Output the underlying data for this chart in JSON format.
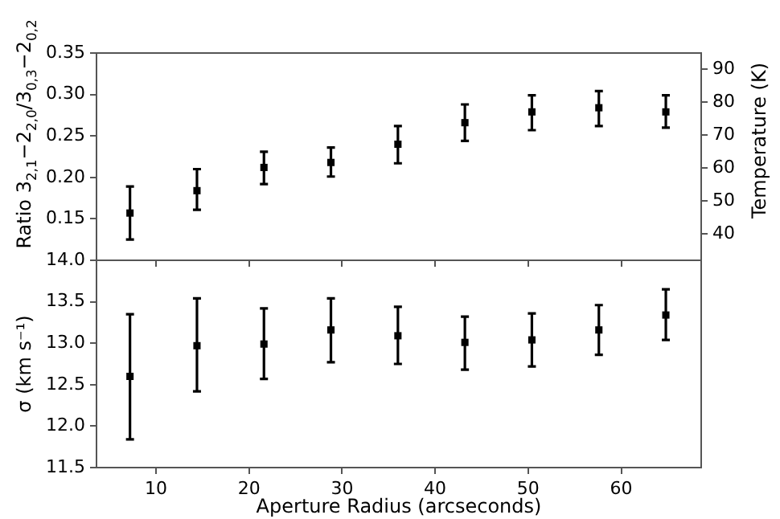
{
  "chart_data": [
    {
      "type": "scatter",
      "ylabel": "Ratio 3$_{2,1}$−2$_{2,0}$/3$_{0,3}$−2$_{0,2}$",
      "y2label": "Temperature (K)",
      "x": [
        7.2,
        14.4,
        21.6,
        28.8,
        36,
        43.2,
        50.4,
        57.6,
        64.8
      ],
      "series": [
        {
          "color": "#000000",
          "values": [
            0.157,
            0.184,
            0.212,
            0.218,
            0.24,
            0.266,
            0.279,
            0.284,
            0.279
          ],
          "errors": [
            [
              0.125,
              0.189
            ],
            [
              0.161,
              0.21
            ],
            [
              0.192,
              0.231
            ],
            [
              0.201,
              0.236
            ],
            [
              0.217,
              0.262
            ],
            [
              0.244,
              0.288
            ],
            [
              0.257,
              0.299
            ],
            [
              0.262,
              0.304
            ],
            [
              0.26,
              0.299
            ]
          ]
        }
      ],
      "xlim": [
        3.6,
        68.6
      ],
      "xticks": [
        10,
        20,
        30,
        40,
        50,
        60
      ],
      "ylim": [
        0.1,
        0.35
      ],
      "yticks": [
        0.15,
        {
          "value": 0.2,
          "label": "0.20"
        },
        0.25,
        {
          "value": 0.3,
          "label": "0.30"
        },
        0.35
      ],
      "y2lim": [
        32,
        95
      ],
      "y2ticks": [
        40,
        50,
        60,
        70,
        80,
        90
      ],
      "tick_labels": "y",
      "marker": "square",
      "grid": false
    },
    {
      "type": "scatter",
      "xlabel": "Aperture Radius (arcseconds)",
      "ylabel": "σ (km s⁻¹)",
      "x": [
        7.2,
        14.4,
        21.6,
        28.8,
        36,
        43.2,
        50.4,
        57.6,
        64.8
      ],
      "series": [
        {
          "color": "#000000",
          "values": [
            12.6,
            12.97,
            12.99,
            13.16,
            13.09,
            13.01,
            13.04,
            13.16,
            13.34
          ],
          "errors": [
            [
              11.84,
              13.35
            ],
            [
              12.42,
              13.54
            ],
            [
              12.57,
              13.42
            ],
            [
              12.77,
              13.54
            ],
            [
              12.75,
              13.44
            ],
            [
              12.68,
              13.32
            ],
            [
              12.72,
              13.36
            ],
            [
              12.86,
              13.46
            ],
            [
              13.04,
              13.65
            ]
          ]
        }
      ],
      "xlim": [
        3.6,
        68.6
      ],
      "xticks": [
        10,
        20,
        30,
        40,
        50,
        60
      ],
      "ylim": [
        11.5,
        14.0
      ],
      "yticks": [
        11.5,
        {
          "value": 12,
          "label": "12.0"
        },
        12.5,
        {
          "value": 13,
          "label": "13.0"
        },
        13.5,
        {
          "value": 14,
          "label": "14.0"
        }
      ],
      "marker": "square",
      "grid": false
    }
  ]
}
